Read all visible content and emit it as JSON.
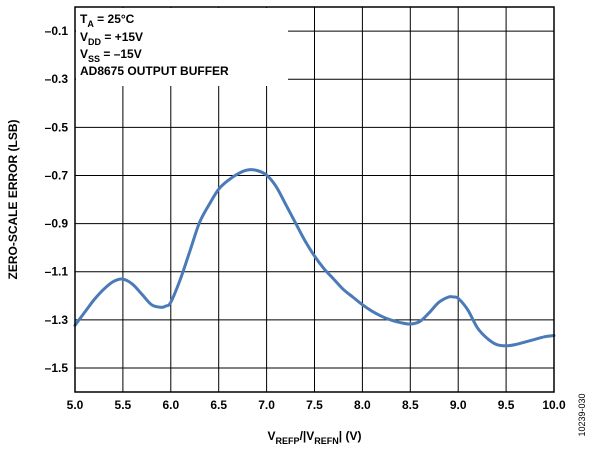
{
  "chart_data": {
    "type": "line",
    "xlabel": {
      "parts": [
        {
          "t": "V",
          "sub": false
        },
        {
          "t": "REFP",
          "sub": true
        },
        {
          "t": "/|V",
          "sub": false
        },
        {
          "t": "REFN",
          "sub": true
        },
        {
          "t": "| (V)",
          "sub": false
        }
      ]
    },
    "ylabel": "ZERO-SCALE ERROR (LSB)",
    "xlim": [
      5.0,
      10.0
    ],
    "ylim": [
      -1.5,
      0.0
    ],
    "xticks": [
      "5.0",
      "5.5",
      "6.0",
      "6.5",
      "7.0",
      "7.5",
      "8.0",
      "8.5",
      "9.0",
      "9.5",
      "10.0"
    ],
    "yticks": [
      "–0.1",
      "–0.3",
      "–0.5",
      "–0.7",
      "–0.9",
      "–1.1",
      "–1.3",
      "–1.5"
    ],
    "grid": true,
    "line_color": "#4a7ab8",
    "annotation": [
      [
        {
          "t": "T",
          "sub": false
        },
        {
          "t": "A",
          "sub": true
        },
        {
          "t": " = 25°C",
          "sub": false
        }
      ],
      [
        {
          "t": "V",
          "sub": false
        },
        {
          "t": "DD",
          "sub": true
        },
        {
          "t": " = +15V",
          "sub": false
        }
      ],
      [
        {
          "t": "V",
          "sub": false
        },
        {
          "t": "SS",
          "sub": true
        },
        {
          "t": " = –15V",
          "sub": false
        }
      ],
      [
        {
          "t": "AD8675 OUTPUT BUFFER",
          "sub": false
        }
      ]
    ],
    "series": [
      {
        "x": [
          5.0,
          5.1,
          5.2,
          5.3,
          5.4,
          5.5,
          5.6,
          5.7,
          5.8,
          5.9,
          5.95,
          6.0,
          6.1,
          6.2,
          6.3,
          6.4,
          6.5,
          6.6,
          6.7,
          6.8,
          6.9,
          7.0,
          7.1,
          7.2,
          7.3,
          7.4,
          7.5,
          7.6,
          7.7,
          7.8,
          7.9,
          8.0,
          8.1,
          8.2,
          8.3,
          8.4,
          8.5,
          8.6,
          8.7,
          8.8,
          8.9,
          8.95,
          9.0,
          9.1,
          9.2,
          9.3,
          9.4,
          9.5,
          9.6,
          9.7,
          9.8,
          9.9,
          10.0
        ],
        "values": [
          -1.24,
          -1.19,
          -1.14,
          -1.1,
          -1.07,
          -1.06,
          -1.08,
          -1.12,
          -1.16,
          -1.17,
          -1.165,
          -1.15,
          -1.06,
          -0.95,
          -0.84,
          -0.77,
          -0.71,
          -0.675,
          -0.65,
          -0.635,
          -0.637,
          -0.655,
          -0.7,
          -0.77,
          -0.84,
          -0.91,
          -0.97,
          -1.02,
          -1.06,
          -1.1,
          -1.13,
          -1.16,
          -1.185,
          -1.205,
          -1.22,
          -1.23,
          -1.235,
          -1.225,
          -1.19,
          -1.15,
          -1.13,
          -1.13,
          -1.135,
          -1.18,
          -1.25,
          -1.29,
          -1.315,
          -1.32,
          -1.315,
          -1.305,
          -1.295,
          -1.285,
          -1.28
        ]
      }
    ]
  },
  "figure_id": "10239-030"
}
